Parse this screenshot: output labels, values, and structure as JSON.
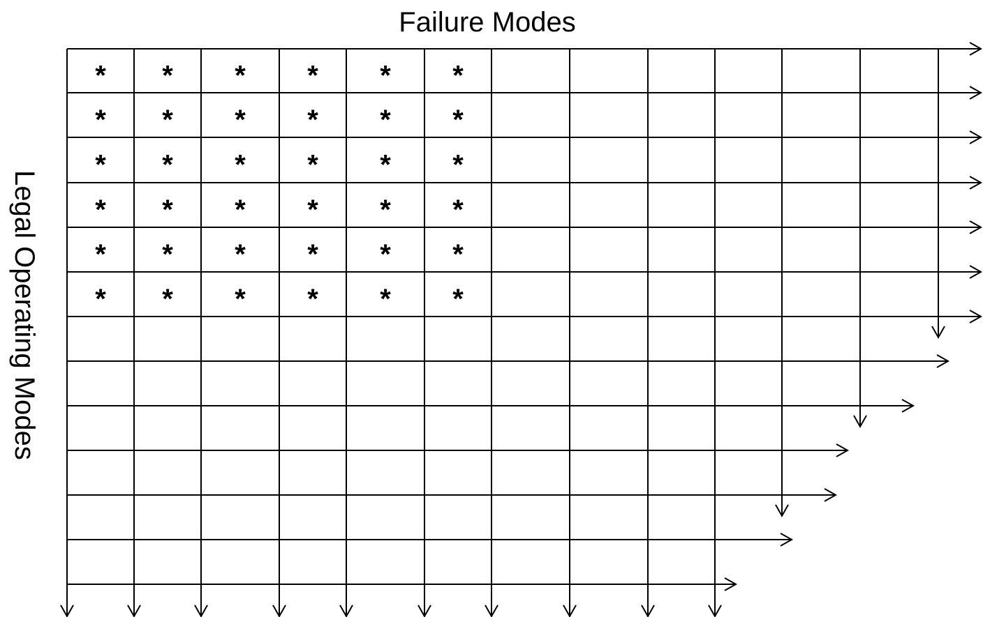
{
  "title": "Failure Modes",
  "side_label": "Legal Operating Modes",
  "cells": [
    [
      "*",
      "*",
      "*",
      "*",
      "*",
      "*"
    ],
    [
      "*",
      "*",
      "*",
      "*",
      "*",
      "*"
    ],
    [
      "*",
      "*",
      "*",
      "*",
      "*",
      "*"
    ],
    [
      "*",
      "*",
      "*",
      "*",
      "*",
      "*"
    ],
    [
      "*",
      "*",
      "*",
      "*",
      "*",
      "*"
    ],
    [
      "*",
      "*",
      "*",
      "*",
      "*",
      "*"
    ]
  ]
}
